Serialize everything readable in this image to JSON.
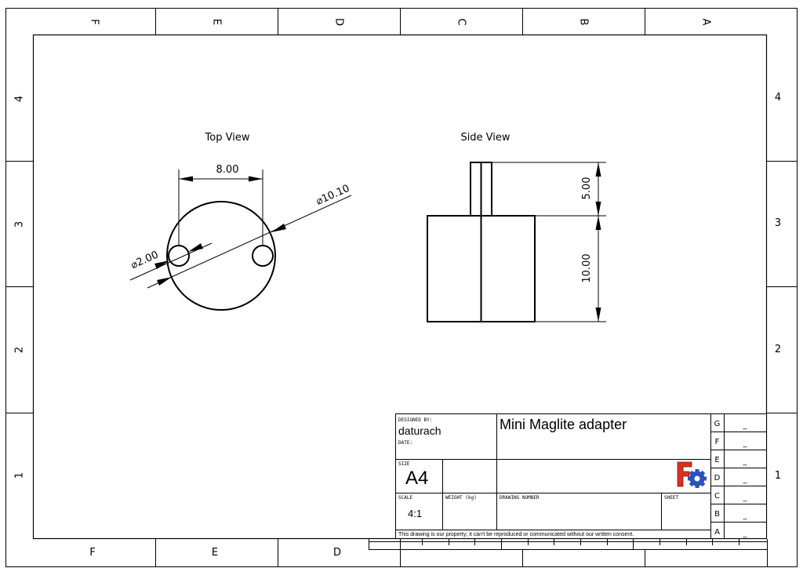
{
  "zones": {
    "columns_top": [
      "F",
      "E",
      "D",
      "C",
      "B",
      "A"
    ],
    "columns_bottom": [
      "F",
      "E",
      "D"
    ],
    "rows_left": [
      "4",
      "3",
      "2",
      "1"
    ],
    "rows_right": [
      "4",
      "3",
      "2",
      "1"
    ]
  },
  "views": {
    "top_view_label": "Top View",
    "side_view_label": "Side View"
  },
  "dimensions": {
    "top_width": "8.00",
    "outer_diameter": "⌀10.10",
    "hole_diameter": "⌀2.00",
    "side_height_top": "5.00",
    "side_height_body": "10.00"
  },
  "title_block": {
    "designed_by_label": "DESIGNED BY:",
    "designed_by": "daturach",
    "date_label": "DATE:",
    "title": "Mini Maglite adapter",
    "size_label": "SIZE",
    "size": "A4",
    "scale_label": "SCALE",
    "scale": "4:1",
    "weight_label": "WEIGHT (kg)",
    "drawing_number_label": "DRAWING NUMBER",
    "sheet_label": "SHEET",
    "notice": "This drawing is our property; it can't be reproduced or communicated without our written consent.",
    "revisions": [
      {
        "letter": "G",
        "value": "_"
      },
      {
        "letter": "F",
        "value": "_"
      },
      {
        "letter": "E",
        "value": "_"
      },
      {
        "letter": "D",
        "value": "_"
      },
      {
        "letter": "C",
        "value": "_"
      },
      {
        "letter": "B",
        "value": "_"
      },
      {
        "letter": "A",
        "value": "_"
      }
    ]
  },
  "logo": {
    "icon": "freecad-logo-icon",
    "colors": {
      "red": "#d9321f",
      "blue": "#2a52be"
    }
  }
}
